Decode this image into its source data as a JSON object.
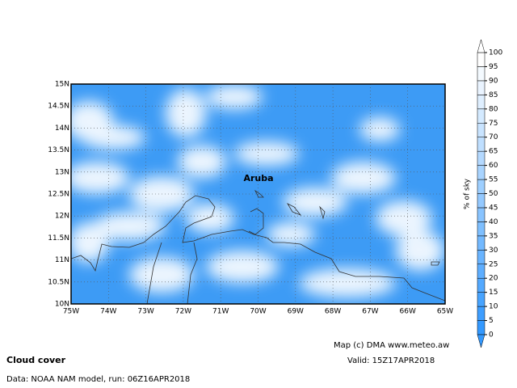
{
  "map": {
    "title": "Cloud cover",
    "data_source": "Data: NOAA NAM model, run: 06Z16APR2018",
    "valid": "Valid: 15Z17APR2018",
    "credit": "Map (c) DMA www.meteo.aw",
    "place_label": "Aruba",
    "lon_labels": [
      "75W",
      "74W",
      "73W",
      "72W",
      "71W",
      "70W",
      "69W",
      "68W",
      "67W",
      "66W",
      "65W"
    ],
    "lat_labels": [
      "15N",
      "14.5N",
      "14N",
      "13.5N",
      "13N",
      "12.5N",
      "12N",
      "11.5N",
      "11N",
      "10.5N",
      "10N"
    ]
  },
  "colorbar": {
    "label": "% of sky",
    "ticks": [
      0,
      5,
      10,
      15,
      20,
      25,
      30,
      35,
      40,
      45,
      50,
      55,
      60,
      65,
      70,
      75,
      80,
      85,
      90,
      95,
      100
    ]
  }
}
